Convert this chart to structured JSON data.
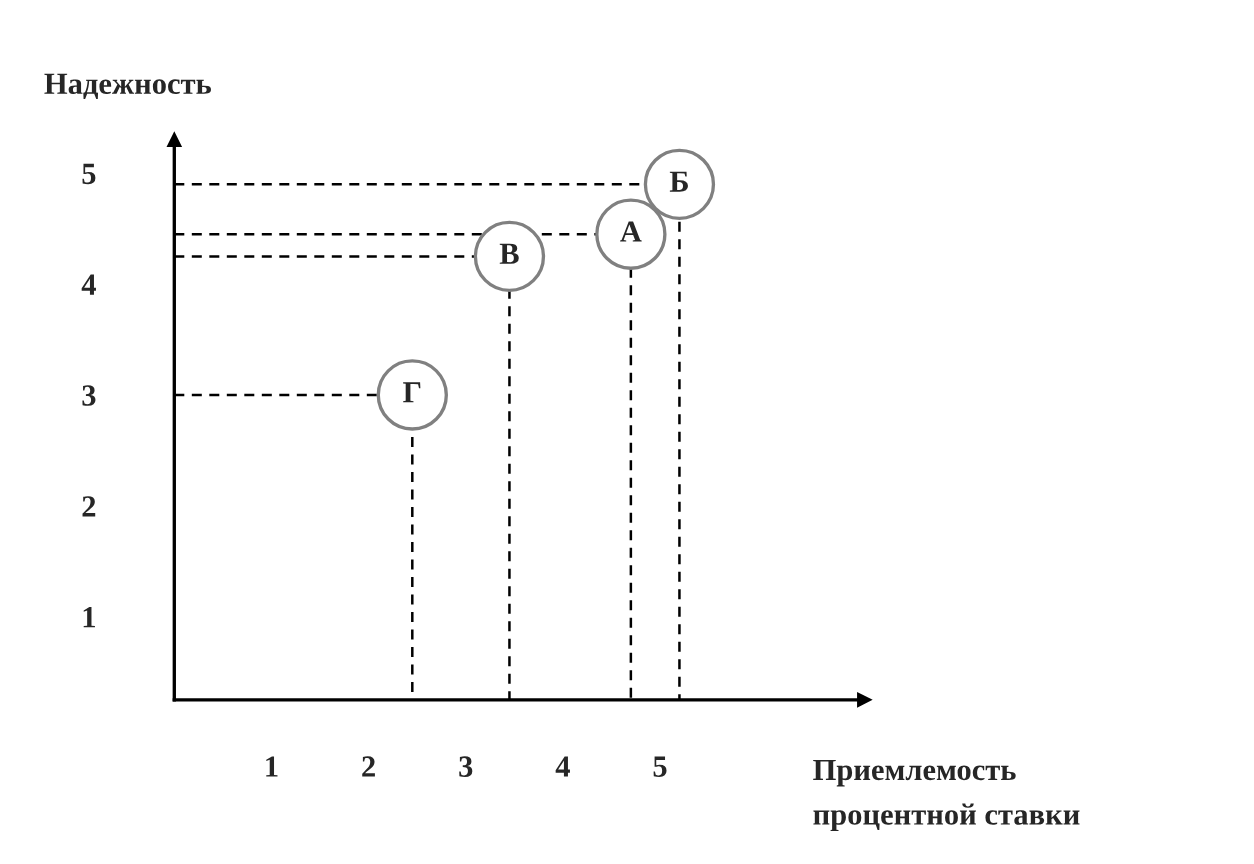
{
  "chart_data": {
    "type": "scatter",
    "xlabel": "Приемлемость\nпроцентной ставки",
    "ylabel": "Надежность",
    "x": [
      2.45,
      3.45,
      4.7,
      5.2
    ],
    "series": [
      {
        "type": "line",
        "color": "#000000",
        "line_style": "dashed",
        "x": [
          0,
          2.45,
          2.45
        ],
        "values": [
          3.0,
          3.0,
          0.25
        ]
      },
      {
        "type": "line",
        "color": "#000000",
        "line_style": "dashed",
        "x": [
          0,
          3.45,
          3.45
        ],
        "values": [
          4.25,
          4.25,
          0.25
        ]
      },
      {
        "type": "line",
        "color": "#000000",
        "line_style": "dashed",
        "x": [
          0,
          4.7,
          4.7
        ],
        "values": [
          4.45,
          4.45,
          0.25
        ]
      },
      {
        "type": "line",
        "color": "#000000",
        "line_style": "dashed",
        "x": [
          0,
          5.2,
          5.2
        ],
        "values": [
          4.9,
          4.9,
          0.25
        ]
      },
      {
        "color": "#808080",
        "marker": "circle",
        "values": [
          3.0,
          4.25,
          4.45,
          4.9
        ],
        "value_labels": [
          "Г",
          "В",
          "А",
          "Б"
        ]
      }
    ],
    "xlim": [
      0,
      7.1
    ],
    "ylim": [
      0.25,
      5.3
    ],
    "xticks": [
      1,
      2,
      3,
      4,
      5
    ],
    "yticks": [
      1,
      2,
      3,
      4,
      5
    ],
    "grid": false,
    "legend": false
  }
}
